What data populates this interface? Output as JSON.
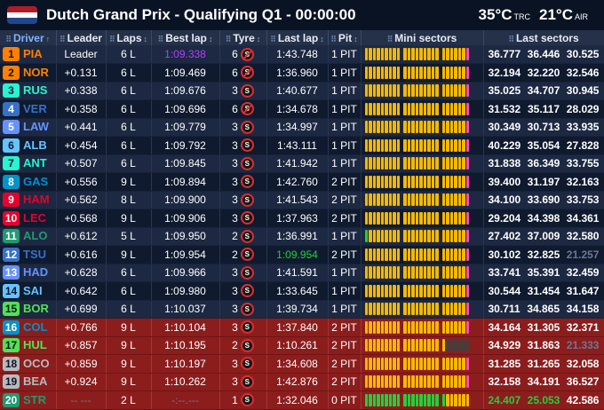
{
  "header": {
    "title": "Dutch Grand Prix - Qualifying Q1 - 00:00:00",
    "track_temp": "35°C",
    "track_temp_label": "TRC",
    "air_temp": "21°C",
    "air_temp_label": "AIR",
    "flag_colors": [
      "#ae1c28",
      "#ffffff",
      "#21468b"
    ]
  },
  "columns": {
    "driver": "Driver",
    "leader": "Leader",
    "laps": "Laps",
    "best_lap": "Best lap",
    "tyre": "Tyre",
    "last_lap": "Last lap",
    "pit": "Pit",
    "mini_sectors": "Mini sectors",
    "last_sectors": "Last sectors"
  },
  "colors": {
    "purple": "#b040ff",
    "green": "#21d13a",
    "yellow": "#f5b800",
    "gray": "#6c7893",
    "elimination_red": "#8c1d1d",
    "pit_pink": "#ff4fa8"
  },
  "rows": [
    {
      "pos": "1",
      "code": "PIA",
      "team_color": "#ff8000",
      "gap": "Leader",
      "laps": "6 L",
      "best": "1:09.338",
      "best_color": "purple",
      "tyre_laps": "6",
      "tyre": "S",
      "tyre_used": true,
      "last": "1:43.748",
      "last_color": "",
      "pit": "1 PIT",
      "sectors": [
        "36.777",
        "36.446",
        "30.525"
      ],
      "sector_colors": [
        "",
        "",
        ""
      ],
      "mini": "YYYYYYYYY|YYYYYYYYY|YYYYYYP",
      "elim": false
    },
    {
      "pos": "2",
      "code": "NOR",
      "team_color": "#ff8000",
      "gap": "+0.131",
      "laps": "6 L",
      "best": "1:09.469",
      "best_color": "",
      "tyre_laps": "6",
      "tyre": "S",
      "tyre_used": true,
      "last": "1:36.960",
      "last_color": "",
      "pit": "1 PIT",
      "sectors": [
        "32.194",
        "32.220",
        "32.546"
      ],
      "sector_colors": [
        "",
        "",
        ""
      ],
      "mini": "YYYYYYYYY|YYYYYYYYY|YYYYYYP",
      "elim": false
    },
    {
      "pos": "3",
      "code": "RUS",
      "team_color": "#27f4d2",
      "gap": "+0.338",
      "laps": "6 L",
      "best": "1:09.676",
      "best_color": "",
      "tyre_laps": "3",
      "tyre": "S",
      "tyre_used": false,
      "last": "1:40.677",
      "last_color": "",
      "pit": "1 PIT",
      "sectors": [
        "35.025",
        "34.707",
        "30.945"
      ],
      "sector_colors": [
        "",
        "",
        ""
      ],
      "mini": "YYYYYYYYY|YYYYYYYYY|YYYYYYP",
      "elim": false
    },
    {
      "pos": "4",
      "code": "VER",
      "team_color": "#3671c6",
      "gap": "+0.358",
      "laps": "6 L",
      "best": "1:09.696",
      "best_color": "",
      "tyre_laps": "6",
      "tyre": "S",
      "tyre_used": true,
      "last": "1:34.678",
      "last_color": "",
      "pit": "1 PIT",
      "sectors": [
        "31.532",
        "35.117",
        "28.029"
      ],
      "sector_colors": [
        "",
        "",
        ""
      ],
      "mini": "YYYYYYYYY|YYYYYYYYY|YYYYYYP",
      "elim": false
    },
    {
      "pos": "5",
      "code": "LAW",
      "team_color": "#6692ff",
      "gap": "+0.441",
      "laps": "6 L",
      "best": "1:09.779",
      "best_color": "",
      "tyre_laps": "3",
      "tyre": "S",
      "tyre_used": false,
      "last": "1:34.997",
      "last_color": "",
      "pit": "1 PIT",
      "sectors": [
        "30.349",
        "30.713",
        "33.935"
      ],
      "sector_colors": [
        "",
        "",
        ""
      ],
      "mini": "YYYYYYYYY|YYYYYYYYY|YYYYYYP",
      "elim": false
    },
    {
      "pos": "6",
      "code": "ALB",
      "team_color": "#64c4ff",
      "gap": "+0.454",
      "laps": "6 L",
      "best": "1:09.792",
      "best_color": "",
      "tyre_laps": "3",
      "tyre": "S",
      "tyre_used": false,
      "last": "1:43.111",
      "last_color": "",
      "pit": "1 PIT",
      "sectors": [
        "40.229",
        "35.054",
        "27.828"
      ],
      "sector_colors": [
        "",
        "",
        ""
      ],
      "mini": "YYYYYYYYY|YYYYYYYYY|YYYYYYP",
      "elim": false
    },
    {
      "pos": "7",
      "code": "ANT",
      "team_color": "#27f4d2",
      "gap": "+0.507",
      "laps": "6 L",
      "best": "1:09.845",
      "best_color": "",
      "tyre_laps": "3",
      "tyre": "S",
      "tyre_used": false,
      "last": "1:41.942",
      "last_color": "",
      "pit": "1 PIT",
      "sectors": [
        "31.838",
        "36.349",
        "33.755"
      ],
      "sector_colors": [
        "",
        "",
        ""
      ],
      "mini": "YYYYYYYYY|YYYYYYYYY|YYYYYYP",
      "elim": false
    },
    {
      "pos": "8",
      "code": "GAS",
      "team_color": "#0093cc",
      "gap": "+0.556",
      "laps": "9 L",
      "best": "1:09.894",
      "best_color": "",
      "tyre_laps": "3",
      "tyre": "S",
      "tyre_used": false,
      "last": "1:42.760",
      "last_color": "",
      "pit": "2 PIT",
      "sectors": [
        "39.400",
        "31.197",
        "32.163"
      ],
      "sector_colors": [
        "",
        "",
        ""
      ],
      "mini": "YYYYYYYYY|YYYYYYYYY|YYYYYYP",
      "elim": false
    },
    {
      "pos": "9",
      "code": "HAM",
      "team_color": "#e8002d",
      "gap": "+0.562",
      "laps": "8 L",
      "best": "1:09.900",
      "best_color": "",
      "tyre_laps": "3",
      "tyre": "S",
      "tyre_used": false,
      "last": "1:41.543",
      "last_color": "",
      "pit": "2 PIT",
      "sectors": [
        "34.100",
        "33.690",
        "33.753"
      ],
      "sector_colors": [
        "",
        "",
        ""
      ],
      "mini": "YYYYYYYYY|YYYYYYYYY|YYYYYYP",
      "elim": false
    },
    {
      "pos": "10",
      "code": "LEC",
      "team_color": "#e8002d",
      "gap": "+0.568",
      "laps": "9 L",
      "best": "1:09.906",
      "best_color": "",
      "tyre_laps": "3",
      "tyre": "S",
      "tyre_used": false,
      "last": "1:37.963",
      "last_color": "",
      "pit": "2 PIT",
      "sectors": [
        "29.204",
        "34.398",
        "34.361"
      ],
      "sector_colors": [
        "",
        "",
        ""
      ],
      "mini": "YYYYYYYYY|YYYYYYYYY|YYYYYYP",
      "elim": false
    },
    {
      "pos": "11",
      "code": "ALO",
      "team_color": "#229971",
      "gap": "+0.612",
      "laps": "5 L",
      "best": "1:09.950",
      "best_color": "",
      "tyre_laps": "2",
      "tyre": "S",
      "tyre_used": false,
      "last": "1:36.991",
      "last_color": "",
      "pit": "1 PIT",
      "sectors": [
        "27.402",
        "37.009",
        "32.580"
      ],
      "sector_colors": [
        "",
        "",
        ""
      ],
      "mini": "GYYYYYYYY|YYYYYYYYY|YYYYYYP",
      "elim": false
    },
    {
      "pos": "12",
      "code": "TSU",
      "team_color": "#3671c6",
      "gap": "+0.616",
      "laps": "9 L",
      "best": "1:09.954",
      "best_color": "",
      "tyre_laps": "2",
      "tyre": "S",
      "tyre_used": false,
      "last": "1:09.954",
      "last_color": "green",
      "pit": "2 PIT",
      "sectors": [
        "30.102",
        "32.825",
        "21.257"
      ],
      "sector_colors": [
        "",
        "",
        "gray"
      ],
      "mini": "YYYYYYYYY|YYYYYYYYY|YYYYYYP",
      "elim": false
    },
    {
      "pos": "13",
      "code": "HAD",
      "team_color": "#6692ff",
      "gap": "+0.628",
      "laps": "6 L",
      "best": "1:09.966",
      "best_color": "",
      "tyre_laps": "3",
      "tyre": "S",
      "tyre_used": false,
      "last": "1:41.591",
      "last_color": "",
      "pit": "1 PIT",
      "sectors": [
        "33.741",
        "35.391",
        "32.459"
      ],
      "sector_colors": [
        "",
        "",
        ""
      ],
      "mini": "YYYYYYYYY|YYYYYYYYY|YYYYYYP",
      "elim": false
    },
    {
      "pos": "14",
      "code": "SAI",
      "team_color": "#64c4ff",
      "gap": "+0.642",
      "laps": "6 L",
      "best": "1:09.980",
      "best_color": "",
      "tyre_laps": "3",
      "tyre": "S",
      "tyre_used": false,
      "last": "1:33.645",
      "last_color": "",
      "pit": "1 PIT",
      "sectors": [
        "30.544",
        "31.454",
        "31.647"
      ],
      "sector_colors": [
        "",
        "",
        ""
      ],
      "mini": "YYYYYYYYY|YYYYYYYYY|YYYYYYP",
      "elim": false
    },
    {
      "pos": "15",
      "code": "BOR",
      "team_color": "#52e252",
      "gap": "+0.699",
      "laps": "6 L",
      "best": "1:10.037",
      "best_color": "",
      "tyre_laps": "3",
      "tyre": "S",
      "tyre_used": false,
      "last": "1:39.734",
      "last_color": "",
      "pit": "1 PIT",
      "sectors": [
        "30.711",
        "34.865",
        "34.158"
      ],
      "sector_colors": [
        "",
        "",
        ""
      ],
      "mini": "YYYYYYYYY|YYYYYYYYY|YYYYYYP",
      "elim": false
    },
    {
      "pos": "16",
      "code": "COL",
      "team_color": "#0093cc",
      "gap": "+0.766",
      "laps": "9 L",
      "best": "1:10.104",
      "best_color": "",
      "tyre_laps": "3",
      "tyre": "S",
      "tyre_used": false,
      "last": "1:37.840",
      "last_color": "",
      "pit": "2 PIT",
      "sectors": [
        "34.164",
        "31.305",
        "32.371"
      ],
      "sector_colors": [
        "",
        "",
        ""
      ],
      "mini": "YYYYYYYYY|YYYYYYYYY|YYYYYYP",
      "elim": true
    },
    {
      "pos": "17",
      "code": "HUL",
      "team_color": "#52e252",
      "gap": "+0.857",
      "laps": "9 L",
      "best": "1:10.195",
      "best_color": "",
      "tyre_laps": "2",
      "tyre": "S",
      "tyre_used": false,
      "last": "1:10.261",
      "last_color": "",
      "pit": "2 PIT",
      "sectors": [
        "34.929",
        "31.863",
        "21.333"
      ],
      "sector_colors": [
        "",
        "",
        "gray"
      ],
      "mini": "YYYYYYYYY|YYYYYYYYY|YDDDDDD",
      "elim": true
    },
    {
      "pos": "18",
      "code": "OCO",
      "team_color": "#b6babd",
      "gap": "+0.859",
      "laps": "9 L",
      "best": "1:10.197",
      "best_color": "",
      "tyre_laps": "3",
      "tyre": "S",
      "tyre_used": false,
      "last": "1:34.608",
      "last_color": "",
      "pit": "2 PIT",
      "sectors": [
        "31.285",
        "31.265",
        "32.058"
      ],
      "sector_colors": [
        "",
        "",
        ""
      ],
      "mini": "YYYYYYYYY|YYYYYYYYY|YYYYYYP",
      "elim": true
    },
    {
      "pos": "19",
      "code": "BEA",
      "team_color": "#b6babd",
      "gap": "+0.924",
      "laps": "9 L",
      "best": "1:10.262",
      "best_color": "",
      "tyre_laps": "3",
      "tyre": "S",
      "tyre_used": false,
      "last": "1:42.876",
      "last_color": "",
      "pit": "2 PIT",
      "sectors": [
        "32.158",
        "34.191",
        "36.527"
      ],
      "sector_colors": [
        "",
        "",
        ""
      ],
      "mini": "YYYYYYYYY|YYYYYYYYY|YYYYYYP",
      "elim": true
    },
    {
      "pos": "20",
      "code": "STR",
      "team_color": "#229971",
      "gap": "-- ---",
      "laps": "2 L",
      "best": "-:--.---",
      "best_color": "gray",
      "tyre_laps": "1",
      "tyre": "S",
      "tyre_used": false,
      "last": "1:32.046",
      "last_color": "",
      "pit": "0 PIT",
      "sectors": [
        "24.407",
        "25.053",
        "42.586"
      ],
      "sector_colors": [
        "green",
        "green",
        ""
      ],
      "mini": "GGGGGGGGG|GGGGGGGGG|GYYYYYY",
      "elim": true
    }
  ]
}
